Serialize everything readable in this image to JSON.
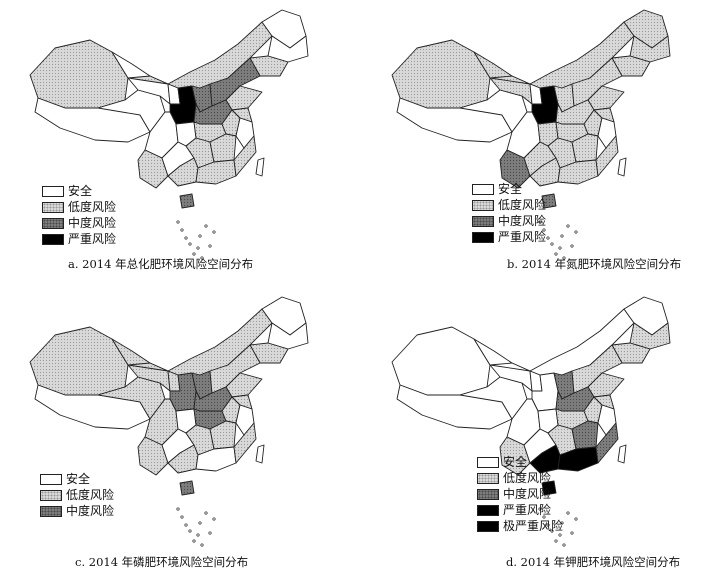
{
  "colors": {
    "safe": "#ffffff",
    "low": "#d9d9d9",
    "mid": "#7d7d7d",
    "severe": "#000000",
    "extreme": "#000000",
    "outline": "#222222"
  },
  "panels": [
    {
      "id": "a",
      "caption": "a. 2014 年总化肥环境风险空间分布",
      "legend": [
        {
          "key": "safe",
          "label": "安全"
        },
        {
          "key": "low",
          "label": "低度风险"
        },
        {
          "key": "mid",
          "label": "中度风险"
        },
        {
          "key": "severe",
          "label": "严重风险"
        }
      ],
      "regions": {
        "xinjiang": "low",
        "tibet": "safe",
        "qinghai": "safe",
        "gansu": "safe",
        "inner_mongolia": "low",
        "heilongjiang": "safe",
        "jilin": "safe",
        "liaoning": "low",
        "ningxia": "safe",
        "shaanxi": "severe",
        "shanxi": "mid",
        "hebei": "mid",
        "shandong": "low",
        "henan": "mid",
        "sichuan": "safe",
        "chongqing": "safe",
        "hubei": "low",
        "anhui": "low",
        "jiangsu": "low",
        "yunnan": "low",
        "guizhou": "safe",
        "hunan": "low",
        "jiangxi": "low",
        "zhejiang": "safe",
        "guangxi": "low",
        "guangdong": "low",
        "fujian": "low",
        "hainan": "mid",
        "taiwan": "safe"
      }
    },
    {
      "id": "b",
      "caption": "b. 2014 年氮肥环境风险空间分布",
      "legend": [
        {
          "key": "safe",
          "label": "安全"
        },
        {
          "key": "low",
          "label": "低度风险"
        },
        {
          "key": "mid",
          "label": "中度风险"
        },
        {
          "key": "severe",
          "label": "严重风险"
        }
      ],
      "regions": {
        "xinjiang": "low",
        "tibet": "safe",
        "qinghai": "safe",
        "gansu": "low",
        "inner_mongolia": "low",
        "heilongjiang": "low",
        "jilin": "low",
        "liaoning": "low",
        "ningxia": "safe",
        "shaanxi": "severe",
        "shanxi": "low",
        "hebei": "low",
        "shandong": "low",
        "henan": "low",
        "sichuan": "safe",
        "chongqing": "low",
        "hubei": "low",
        "anhui": "low",
        "jiangsu": "low",
        "yunnan": "mid",
        "guizhou": "low",
        "hunan": "low",
        "jiangxi": "low",
        "zhejiang": "safe",
        "guangxi": "low",
        "guangdong": "low",
        "fujian": "low",
        "hainan": "mid",
        "taiwan": "safe"
      }
    },
    {
      "id": "c",
      "caption": "c. 2014 年磷肥环境风险空间分布",
      "legend": [
        {
          "key": "safe",
          "label": "安全"
        },
        {
          "key": "low",
          "label": "低度风险"
        },
        {
          "key": "mid",
          "label": "中度风险"
        }
      ],
      "regions": {
        "xinjiang": "low",
        "tibet": "safe",
        "qinghai": "low",
        "gansu": "low",
        "inner_mongolia": "low",
        "heilongjiang": "safe",
        "jilin": "safe",
        "liaoning": "low",
        "ningxia": "low",
        "shaanxi": "mid",
        "shanxi": "mid",
        "hebei": "low",
        "shandong": "low",
        "henan": "mid",
        "sichuan": "low",
        "chongqing": "safe",
        "hubei": "mid",
        "anhui": "low",
        "jiangsu": "low",
        "yunnan": "low",
        "guizhou": "safe",
        "hunan": "low",
        "jiangxi": "low",
        "zhejiang": "safe",
        "guangxi": "low",
        "guangdong": "safe",
        "fujian": "low",
        "hainan": "mid",
        "taiwan": "safe"
      }
    },
    {
      "id": "d",
      "caption": "d. 2014 年钾肥环境风险空间分布",
      "legend": [
        {
          "key": "safe",
          "label": "安全"
        },
        {
          "key": "low",
          "label": "低度风险"
        },
        {
          "key": "mid",
          "label": "中度风险"
        },
        {
          "key": "severe",
          "label": "严重风险"
        },
        {
          "key": "extreme",
          "label": "极严重风险"
        }
      ],
      "regions": {
        "xinjiang": "safe",
        "tibet": "safe",
        "qinghai": "safe",
        "gansu": "safe",
        "inner_mongolia": "safe",
        "heilongjiang": "safe",
        "jilin": "low",
        "liaoning": "low",
        "ningxia": "safe",
        "shaanxi": "safe",
        "shanxi": "mid",
        "hebei": "low",
        "shandong": "low",
        "henan": "mid",
        "sichuan": "safe",
        "chongqing": "safe",
        "hubei": "low",
        "anhui": "low",
        "jiangsu": "low",
        "yunnan": "low",
        "guizhou": "safe",
        "hunan": "low",
        "jiangxi": "mid",
        "zhejiang": "safe",
        "guangxi": "severe",
        "guangdong": "extreme",
        "fujian": "mid",
        "hainan": "severe",
        "taiwan": "safe"
      }
    }
  ]
}
